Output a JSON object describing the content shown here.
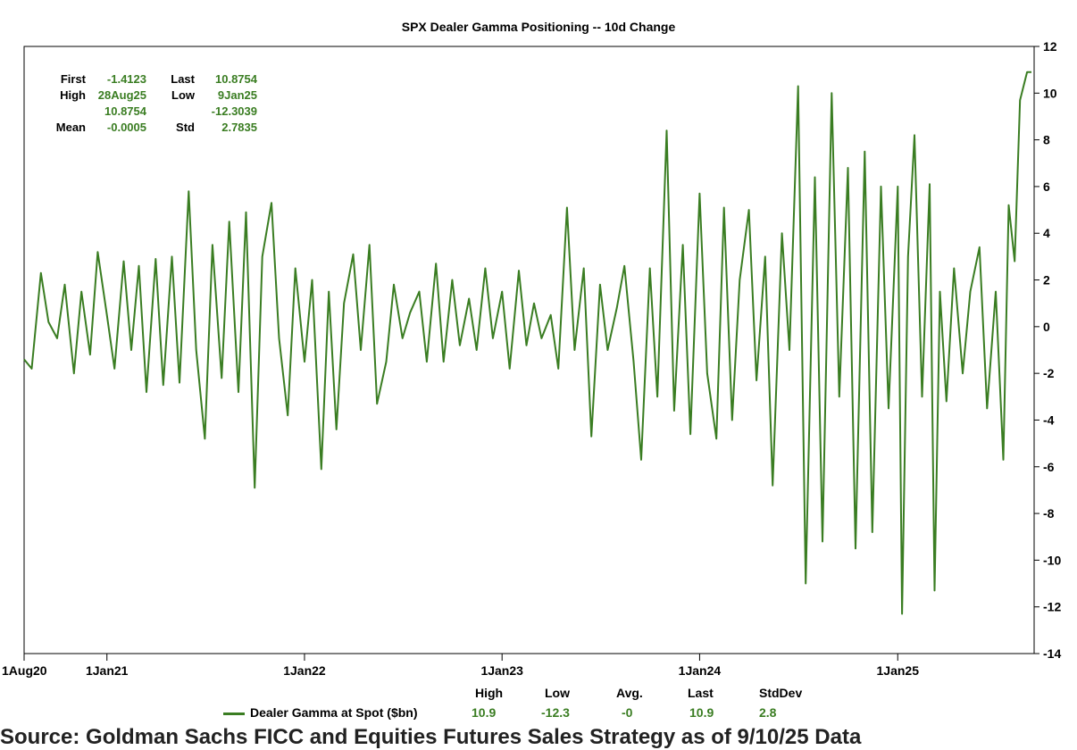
{
  "chart_data": {
    "type": "line",
    "title": "SPX Dealer Gamma Positioning -- 10d Change",
    "xlabel": "",
    "ylabel": "",
    "x_range": [
      "2020-08-01",
      "2025-09-10"
    ],
    "ylim": [
      -14,
      12
    ],
    "y_ticks": [
      "12",
      "10",
      "8",
      "6",
      "4",
      "2",
      "0",
      "-2",
      "-4",
      "-6",
      "-8",
      "-10",
      "-12",
      "-14"
    ],
    "x_tick_labels": [
      "1Aug20",
      "1Jan21",
      "1Jan22",
      "1Jan23",
      "1Jan24",
      "1Jan25"
    ],
    "grid": false,
    "y_axis_position": "right",
    "series": [
      {
        "name": "Dealer Gamma at Spot ($bn)",
        "color": "#3a7d22",
        "points": [
          [
            "2020-08-01",
            -1.4
          ],
          [
            "2020-08-15",
            -1.8
          ],
          [
            "2020-09-01",
            2.3
          ],
          [
            "2020-09-15",
            0.2
          ],
          [
            "2020-10-01",
            -0.5
          ],
          [
            "2020-10-15",
            1.8
          ],
          [
            "2020-11-01",
            -2.0
          ],
          [
            "2020-11-15",
            1.5
          ],
          [
            "2020-12-01",
            -1.2
          ],
          [
            "2020-12-15",
            3.2
          ],
          [
            "2021-01-01",
            0.5
          ],
          [
            "2021-01-15",
            -1.8
          ],
          [
            "2021-02-01",
            2.8
          ],
          [
            "2021-02-15",
            -1.0
          ],
          [
            "2021-03-01",
            2.6
          ],
          [
            "2021-03-15",
            -2.8
          ],
          [
            "2021-04-01",
            2.9
          ],
          [
            "2021-04-15",
            -2.5
          ],
          [
            "2021-05-01",
            3.0
          ],
          [
            "2021-05-15",
            -2.4
          ],
          [
            "2021-06-01",
            5.8
          ],
          [
            "2021-06-15",
            -1.0
          ],
          [
            "2021-07-01",
            -4.8
          ],
          [
            "2021-07-15",
            3.5
          ],
          [
            "2021-08-01",
            -2.2
          ],
          [
            "2021-08-15",
            4.5
          ],
          [
            "2021-09-01",
            -2.8
          ],
          [
            "2021-09-15",
            4.9
          ],
          [
            "2021-10-01",
            -6.9
          ],
          [
            "2021-10-15",
            3.0
          ],
          [
            "2021-11-01",
            5.3
          ],
          [
            "2021-11-15",
            -0.5
          ],
          [
            "2021-12-01",
            -3.8
          ],
          [
            "2021-12-15",
            2.5
          ],
          [
            "2022-01-01",
            -1.5
          ],
          [
            "2022-01-15",
            2.0
          ],
          [
            "2022-02-01",
            -6.1
          ],
          [
            "2022-02-15",
            1.5
          ],
          [
            "2022-03-01",
            -4.4
          ],
          [
            "2022-03-15",
            1.0
          ],
          [
            "2022-04-01",
            3.1
          ],
          [
            "2022-04-15",
            -1.0
          ],
          [
            "2022-05-01",
            3.5
          ],
          [
            "2022-05-15",
            -3.3
          ],
          [
            "2022-06-01",
            -1.5
          ],
          [
            "2022-06-15",
            1.8
          ],
          [
            "2022-07-01",
            -0.5
          ],
          [
            "2022-07-15",
            0.6
          ],
          [
            "2022-08-01",
            1.5
          ],
          [
            "2022-08-15",
            -1.5
          ],
          [
            "2022-09-01",
            2.7
          ],
          [
            "2022-09-15",
            -1.5
          ],
          [
            "2022-10-01",
            2.0
          ],
          [
            "2022-10-15",
            -0.8
          ],
          [
            "2022-11-01",
            1.2
          ],
          [
            "2022-11-15",
            -1.0
          ],
          [
            "2022-12-01",
            2.5
          ],
          [
            "2022-12-15",
            -0.5
          ],
          [
            "2023-01-01",
            1.5
          ],
          [
            "2023-01-15",
            -1.8
          ],
          [
            "2023-02-01",
            2.4
          ],
          [
            "2023-02-15",
            -0.8
          ],
          [
            "2023-03-01",
            1.0
          ],
          [
            "2023-03-15",
            -0.5
          ],
          [
            "2023-04-01",
            0.5
          ],
          [
            "2023-04-15",
            -1.8
          ],
          [
            "2023-05-01",
            5.1
          ],
          [
            "2023-05-15",
            -1.0
          ],
          [
            "2023-06-01",
            2.5
          ],
          [
            "2023-06-15",
            -4.7
          ],
          [
            "2023-07-01",
            1.8
          ],
          [
            "2023-07-15",
            -1.0
          ],
          [
            "2023-08-01",
            0.8
          ],
          [
            "2023-08-15",
            2.6
          ],
          [
            "2023-09-01",
            -1.5
          ],
          [
            "2023-09-15",
            -5.7
          ],
          [
            "2023-10-01",
            2.5
          ],
          [
            "2023-10-15",
            -3.0
          ],
          [
            "2023-11-01",
            8.4
          ],
          [
            "2023-11-15",
            -3.6
          ],
          [
            "2023-12-01",
            3.5
          ],
          [
            "2023-12-15",
            -4.6
          ],
          [
            "2024-01-01",
            5.7
          ],
          [
            "2024-01-15",
            -2.0
          ],
          [
            "2024-02-01",
            -4.8
          ],
          [
            "2024-02-15",
            5.1
          ],
          [
            "2024-03-01",
            -4.0
          ],
          [
            "2024-03-15",
            2.0
          ],
          [
            "2024-04-01",
            5.0
          ],
          [
            "2024-04-15",
            -2.3
          ],
          [
            "2024-05-01",
            3.0
          ],
          [
            "2024-05-15",
            -6.8
          ],
          [
            "2024-06-01",
            4.0
          ],
          [
            "2024-06-15",
            -1.0
          ],
          [
            "2024-07-01",
            10.3
          ],
          [
            "2024-07-15",
            -11.0
          ],
          [
            "2024-08-01",
            6.4
          ],
          [
            "2024-08-15",
            -9.2
          ],
          [
            "2024-09-01",
            10.0
          ],
          [
            "2024-09-15",
            -3.0
          ],
          [
            "2024-10-01",
            6.8
          ],
          [
            "2024-10-15",
            -9.5
          ],
          [
            "2024-11-01",
            7.5
          ],
          [
            "2024-11-15",
            -8.8
          ],
          [
            "2024-12-01",
            6.0
          ],
          [
            "2024-12-15",
            -3.5
          ],
          [
            "2025-01-01",
            6.0
          ],
          [
            "2025-01-09",
            -12.3
          ],
          [
            "2025-01-20",
            3.0
          ],
          [
            "2025-02-01",
            8.2
          ],
          [
            "2025-02-15",
            -3.0
          ],
          [
            "2025-03-01",
            6.1
          ],
          [
            "2025-03-10",
            -11.3
          ],
          [
            "2025-03-20",
            1.5
          ],
          [
            "2025-04-01",
            -3.2
          ],
          [
            "2025-04-15",
            2.5
          ],
          [
            "2025-05-01",
            -2.0
          ],
          [
            "2025-05-15",
            1.5
          ],
          [
            "2025-06-01",
            3.4
          ],
          [
            "2025-06-15",
            -3.5
          ],
          [
            "2025-07-01",
            1.5
          ],
          [
            "2025-07-15",
            -5.7
          ],
          [
            "2025-07-25",
            5.2
          ],
          [
            "2025-08-05",
            2.8
          ],
          [
            "2025-08-15",
            9.7
          ],
          [
            "2025-08-28",
            10.9
          ],
          [
            "2025-09-05",
            10.9
          ]
        ]
      }
    ]
  },
  "stats_box": [
    [
      "First",
      "-1.4123",
      "Last",
      "10.8754"
    ],
    [
      "High",
      "28Aug25",
      "Low",
      "9Jan25"
    ],
    [
      "",
      "10.8754",
      "",
      "-12.3039"
    ],
    [
      "Mean",
      "-0.0005",
      "Std",
      "2.7835"
    ]
  ],
  "legend": {
    "series_label": "Dealer Gamma at Spot ($bn)",
    "headers": [
      "High",
      "Low",
      "Avg.",
      "Last",
      "StdDev"
    ],
    "values": [
      "10.9",
      "-12.3",
      "-0",
      "10.9",
      "2.8"
    ]
  },
  "footer_text": "Source: Goldman Sachs FICC and Equities Futures Sales Strategy as of 9/10/25 Data"
}
